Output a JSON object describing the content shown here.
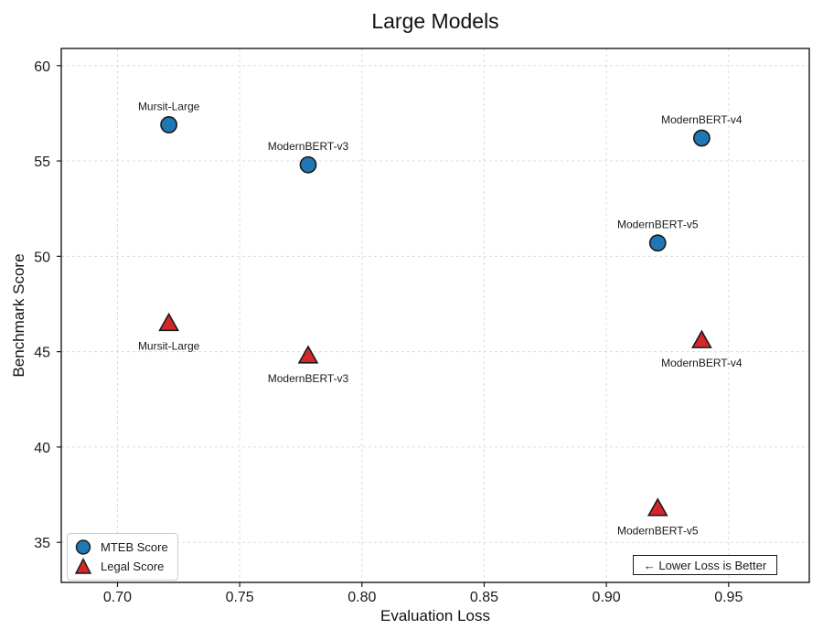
{
  "chart_data": {
    "type": "scatter",
    "title": "Large Models",
    "xlabel": "Evaluation Loss",
    "ylabel": "Benchmark Score",
    "xlim": [
      0.677,
      0.983
    ],
    "ylim": [
      32.9,
      60.9
    ],
    "xticks": [
      0.7,
      0.75,
      0.8,
      0.85,
      0.9,
      0.95
    ],
    "xtick_labels": [
      "0.70",
      "0.75",
      "0.80",
      "0.85",
      "0.90",
      "0.95"
    ],
    "yticks": [
      35,
      40,
      45,
      50,
      55,
      60
    ],
    "ytick_labels": [
      "35",
      "40",
      "45",
      "50",
      "55",
      "60"
    ],
    "grid": true,
    "grid_style": "dashed",
    "legend_position": "lower-left",
    "annotation": "←  Lower Loss is Better",
    "colors": {
      "mteb": "#1f77b4",
      "legal": "#d62728",
      "marker_edge": "#1a1a1a",
      "grid": "#dcdcdc",
      "spine": "#1a1a1a"
    },
    "series": [
      {
        "name": "MTEB Score",
        "marker": "circle",
        "color": "#1f77b4",
        "points": [
          {
            "label": "Mursit-Large",
            "x": 0.721,
            "y": 56.9,
            "label_position": "above"
          },
          {
            "label": "ModernBERT-v3",
            "x": 0.778,
            "y": 54.8,
            "label_position": "above"
          },
          {
            "label": "ModernBERT-v4",
            "x": 0.939,
            "y": 56.2,
            "label_position": "above"
          },
          {
            "label": "ModernBERT-v5",
            "x": 0.921,
            "y": 50.7,
            "label_position": "above"
          }
        ]
      },
      {
        "name": "Legal Score",
        "marker": "triangle",
        "color": "#d62728",
        "points": [
          {
            "label": "Mursit-Large",
            "x": 0.721,
            "y": 46.5,
            "label_position": "below"
          },
          {
            "label": "ModernBERT-v3",
            "x": 0.778,
            "y": 44.8,
            "label_position": "below"
          },
          {
            "label": "ModernBERT-v4",
            "x": 0.939,
            "y": 45.6,
            "label_position": "below"
          },
          {
            "label": "ModernBERT-v5",
            "x": 0.921,
            "y": 36.8,
            "label_position": "below"
          }
        ]
      }
    ]
  }
}
